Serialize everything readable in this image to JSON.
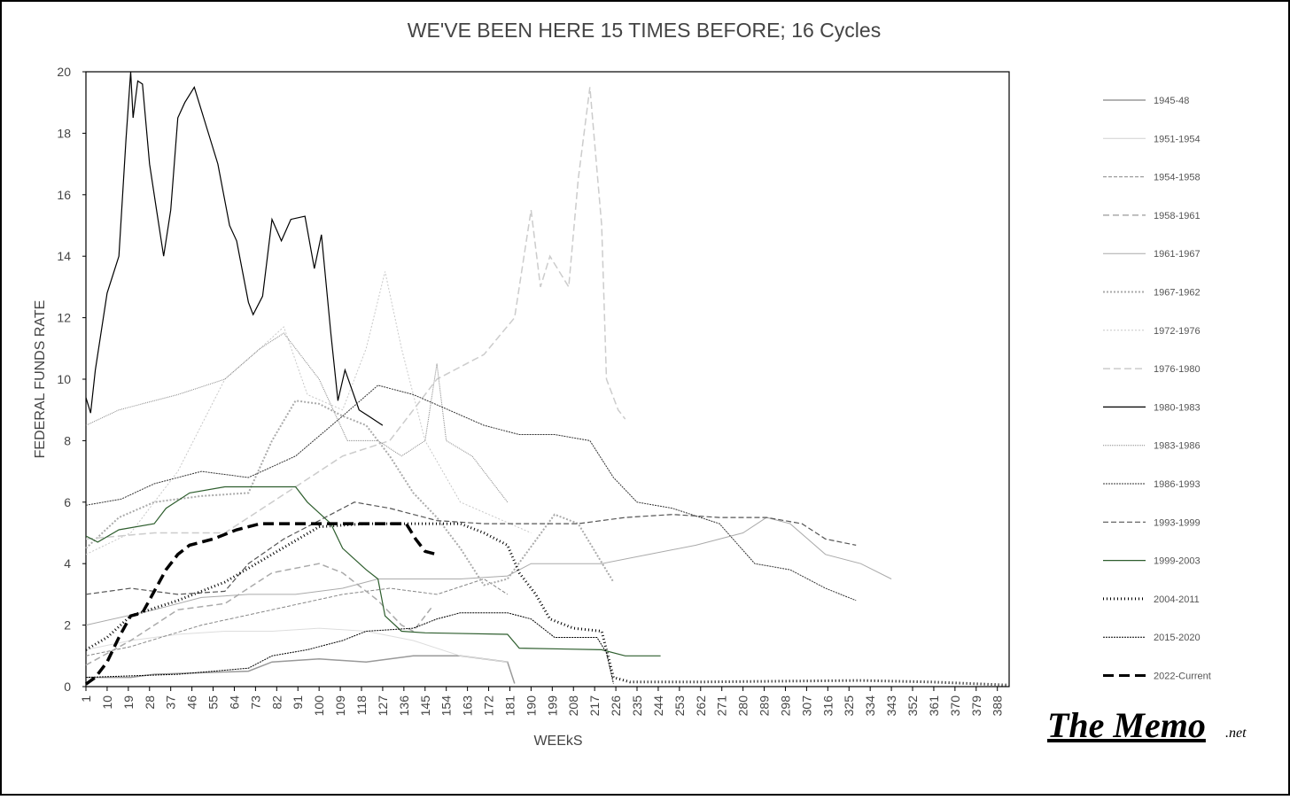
{
  "chart_data": {
    "type": "line",
    "title": "WE'VE BEEN HERE 15 TIMES BEFORE; 16 Cycles",
    "x_label": "WEEkS",
    "y_label": "FEDERAL FUNDS RATE",
    "xlim": [
      1,
      393
    ],
    "ylim": [
      0,
      20
    ],
    "yticks": [
      0,
      2,
      4,
      6,
      8,
      10,
      12,
      14,
      16,
      18,
      20
    ],
    "xticks": [
      1,
      10,
      19,
      28,
      37,
      46,
      55,
      64,
      73,
      82,
      91,
      100,
      109,
      118,
      127,
      136,
      145,
      154,
      163,
      172,
      181,
      190,
      199,
      208,
      217,
      226,
      235,
      244,
      253,
      262,
      271,
      280,
      289,
      298,
      307,
      316,
      325,
      334,
      343,
      352,
      361,
      370,
      379,
      388
    ],
    "series": [
      {
        "name": "1945-48",
        "color": "#999999",
        "width": 1.5,
        "dash": "",
        "x": [
          1,
          20,
          30,
          70,
          80,
          100,
          120,
          140,
          160,
          180,
          183
        ],
        "values": [
          0.3,
          0.3,
          0.4,
          0.5,
          0.8,
          0.9,
          0.8,
          1.0,
          1.0,
          0.8,
          0.1
        ]
      },
      {
        "name": "1951-1954",
        "color": "#dddddd",
        "width": 1,
        "dash": "",
        "x": [
          1,
          20,
          40,
          60,
          80,
          100,
          120,
          140,
          160,
          180
        ],
        "values": [
          1.2,
          1.5,
          1.7,
          1.8,
          1.8,
          1.9,
          1.8,
          1.5,
          1.0,
          0.8
        ]
      },
      {
        "name": "1954-1958",
        "color": "#888888",
        "width": 1,
        "dash": "4,2",
        "x": [
          1,
          20,
          50,
          80,
          110,
          130,
          150,
          170,
          180
        ],
        "values": [
          1.0,
          1.3,
          2.0,
          2.5,
          3.0,
          3.2,
          3.0,
          3.5,
          3.0
        ]
      },
      {
        "name": "1958-1961",
        "color": "#aaaaaa",
        "width": 1.5,
        "dash": "7,4",
        "x": [
          1,
          20,
          40,
          60,
          80,
          100,
          110,
          125,
          135,
          140,
          148
        ],
        "values": [
          0.7,
          1.5,
          2.5,
          2.7,
          3.7,
          4.0,
          3.7,
          2.8,
          2.0,
          1.8,
          2.6
        ]
      },
      {
        "name": "1961-1967",
        "color": "#aaaaaa",
        "width": 1,
        "dash": "",
        "x": [
          1,
          30,
          50,
          70,
          90,
          110,
          125,
          160,
          180,
          190,
          220,
          240,
          260,
          280,
          290,
          300,
          315,
          330,
          343
        ],
        "values": [
          2.0,
          2.5,
          2.9,
          3.0,
          3.0,
          3.2,
          3.5,
          3.5,
          3.6,
          4.0,
          4.0,
          4.3,
          4.6,
          5.0,
          5.5,
          5.3,
          4.3,
          4.0,
          3.5
        ]
      },
      {
        "name": "1967-1962",
        "color": "#aaaaaa",
        "width": 2,
        "dash": "2,2",
        "x": [
          1,
          15,
          30,
          50,
          70,
          80,
          90,
          100,
          110,
          120,
          130,
          140,
          150,
          160,
          170,
          180,
          200,
          210,
          225
        ],
        "values": [
          4.5,
          5.5,
          6.0,
          6.2,
          6.3,
          8.0,
          9.3,
          9.2,
          8.8,
          8.5,
          7.5,
          6.3,
          5.5,
          4.5,
          3.3,
          3.5,
          5.6,
          5.3,
          3.4
        ]
      },
      {
        "name": "1972-1976",
        "color": "#c8c8c8",
        "width": 1,
        "dash": "2,2",
        "x": [
          1,
          20,
          40,
          60,
          75,
          85,
          95,
          110,
          120,
          128,
          135,
          145,
          160,
          175,
          190
        ],
        "values": [
          4.3,
          5.0,
          7.0,
          10.0,
          11.0,
          11.7,
          9.5,
          9.0,
          11.0,
          13.5,
          11.0,
          8.0,
          6.0,
          5.5,
          5.0
        ]
      },
      {
        "name": "1976-1980",
        "color": "#cccccc",
        "width": 1.5,
        "dash": "8,4",
        "x": [
          1,
          30,
          60,
          90,
          110,
          130,
          150,
          170,
          183,
          190,
          194,
          198,
          206,
          210,
          215,
          220,
          222,
          227,
          230
        ],
        "values": [
          4.8,
          5.0,
          5.0,
          6.5,
          7.5,
          8.0,
          10.0,
          10.8,
          12.0,
          15.5,
          13.0,
          14.0,
          13.0,
          16.5,
          19.5,
          15.0,
          10.0,
          9.0,
          8.7
        ]
      },
      {
        "name": "1980-1983",
        "color": "#000000",
        "width": 1.2,
        "dash": "",
        "x": [
          1,
          3,
          5,
          10,
          15,
          18,
          20,
          21,
          23,
          25,
          28,
          31,
          34,
          37,
          40,
          43,
          47,
          51,
          57,
          62,
          65,
          70,
          72,
          76,
          80,
          84,
          88,
          94,
          98,
          101,
          105,
          108,
          111,
          117,
          121,
          127
        ],
        "values": [
          9.4,
          8.9,
          10.3,
          12.8,
          14.0,
          17.8,
          20.0,
          18.5,
          19.7,
          19.6,
          17.0,
          15.5,
          14.0,
          15.5,
          18.5,
          19.0,
          19.5,
          18.5,
          17.0,
          15.0,
          14.5,
          12.5,
          12.1,
          12.7,
          15.2,
          14.5,
          15.2,
          15.3,
          13.6,
          14.7,
          11.5,
          9.3,
          10.3,
          9.0,
          8.8,
          8.5
        ]
      },
      {
        "name": "1983-1986",
        "color": "#888888",
        "width": 1,
        "dash": "1,1",
        "x": [
          1,
          15,
          40,
          60,
          75,
          85,
          100,
          112,
          125,
          135,
          145,
          150,
          154,
          165,
          180
        ],
        "values": [
          8.5,
          9.0,
          9.5,
          10.0,
          11.0,
          11.5,
          10.0,
          8.0,
          8.0,
          7.5,
          8.0,
          10.5,
          8.0,
          7.5,
          6.0
        ]
      },
      {
        "name": "1986-1993",
        "color": "#333333",
        "width": 1,
        "dash": "2,1",
        "x": [
          1,
          16,
          30,
          50,
          70,
          90,
          110,
          125,
          140,
          155,
          170,
          185,
          200,
          215,
          225,
          235,
          250,
          270,
          285,
          300,
          315,
          328
        ],
        "values": [
          5.9,
          6.1,
          6.6,
          7.0,
          6.8,
          7.5,
          8.8,
          9.8,
          9.5,
          9.0,
          8.5,
          8.2,
          8.2,
          8.0,
          6.8,
          6.0,
          5.8,
          5.3,
          4.0,
          3.8,
          3.2,
          2.8
        ]
      },
      {
        "name": "1993-1999",
        "color": "#555555",
        "width": 1.2,
        "dash": "6,3",
        "x": [
          1,
          20,
          40,
          60,
          70,
          85,
          100,
          115,
          130,
          150,
          170,
          190,
          210,
          230,
          250,
          270,
          290,
          305,
          315,
          328
        ],
        "values": [
          3.0,
          3.2,
          3.0,
          3.1,
          4.0,
          4.8,
          5.4,
          6.0,
          5.8,
          5.4,
          5.3,
          5.3,
          5.3,
          5.5,
          5.6,
          5.5,
          5.5,
          5.3,
          4.8,
          4.6
        ]
      },
      {
        "name": "1999-2003",
        "color": "#2e5e2e",
        "width": 1.2,
        "dash": "",
        "x": [
          1,
          6,
          15,
          30,
          35,
          45,
          60,
          70,
          90,
          95,
          105,
          110,
          120,
          125,
          128,
          135,
          145,
          180,
          185,
          220,
          230,
          245
        ],
        "values": [
          4.9,
          4.7,
          5.1,
          5.3,
          5.8,
          6.3,
          6.5,
          6.5,
          6.5,
          6.0,
          5.3,
          4.5,
          3.8,
          3.5,
          2.3,
          1.8,
          1.75,
          1.7,
          1.25,
          1.2,
          1.0,
          1.0
        ]
      },
      {
        "name": "2004-2011",
        "color": "#000000",
        "width": 3,
        "dash": "1,3",
        "x": [
          1,
          10,
          20,
          40,
          60,
          80,
          100,
          120,
          160,
          170,
          180,
          185,
          192,
          198,
          208,
          220,
          225,
          232,
          260,
          300,
          330,
          360,
          393
        ],
        "values": [
          1.2,
          1.6,
          2.3,
          2.8,
          3.4,
          4.3,
          5.2,
          5.3,
          5.3,
          5.0,
          4.6,
          3.7,
          3.0,
          2.2,
          1.9,
          1.8,
          0.3,
          0.15,
          0.15,
          0.18,
          0.2,
          0.15,
          0.05
        ]
      },
      {
        "name": "2015-2020",
        "color": "#000000",
        "width": 1,
        "dash": "2,1",
        "x": [
          1,
          40,
          70,
          80,
          95,
          110,
          120,
          140,
          150,
          160,
          180,
          190,
          200,
          218,
          222,
          225
        ],
        "values": [
          0.3,
          0.4,
          0.6,
          1.0,
          1.2,
          1.5,
          1.8,
          1.9,
          2.2,
          2.4,
          2.4,
          2.2,
          1.6,
          1.6,
          1.1,
          0.1
        ]
      },
      {
        "name": "2022-Current",
        "color": "#000000",
        "width": 3.5,
        "dash": "12,6",
        "x": [
          1,
          5,
          10,
          15,
          20,
          25,
          30,
          35,
          40,
          45,
          55,
          65,
          75,
          95,
          110,
          130,
          137,
          141,
          145,
          150
        ],
        "values": [
          0.08,
          0.3,
          0.8,
          1.6,
          2.3,
          2.4,
          3.1,
          3.8,
          4.3,
          4.6,
          4.8,
          5.1,
          5.3,
          5.3,
          5.3,
          5.3,
          5.3,
          4.8,
          4.4,
          4.3
        ]
      }
    ]
  },
  "logo": "The Memo",
  "logo_suffix": ".net"
}
